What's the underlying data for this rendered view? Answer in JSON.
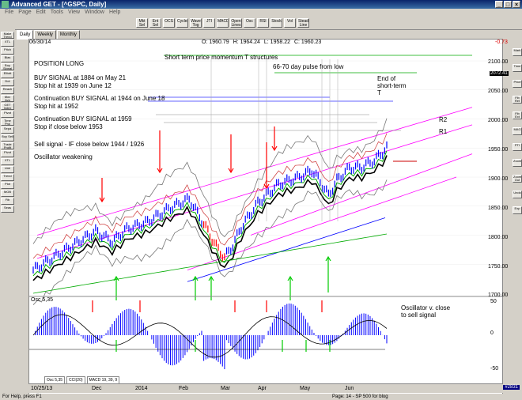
{
  "window": {
    "title": "Advanced GET - [^GSPC, Daily]"
  },
  "menu": [
    "File",
    "Page",
    "Edit",
    "Tools",
    "View",
    "Window",
    "Help"
  ],
  "toolbar": [
    "Mkt Sel",
    "Ent Sel",
    "OCS",
    "Cycles",
    "Wave Tog",
    "JTI",
    "MACD",
    "Open Lines",
    "Osc",
    "RSI",
    "Stock",
    "Vol",
    "Steady Line"
  ],
  "timeframe_tabs": [
    "Daily",
    "Weekly",
    "Monthly"
  ],
  "sidebar_buttons": [
    "Make Trend",
    "XTL",
    "Pitch",
    "Bias",
    "Buy Signal",
    "Elliott",
    "Dot",
    "Reach",
    "Mov Avg",
    "GET Index",
    "Pivot",
    "Time Proj",
    "Sepa",
    "Buy Sell",
    "Trade Profit",
    "Pivot",
    "XTL",
    "Line",
    "Trend",
    "Plot",
    "MOB",
    "Fib",
    "Seas"
  ],
  "right_buttons": [
    "Mark",
    "Time",
    "Price",
    "Fib Ret",
    "Fib Ext",
    "MAG",
    "PTI",
    "Zoom",
    "Zoom Out",
    "Undo",
    "Exp"
  ],
  "date_header": "06/30/14",
  "ohlc": {
    "open": "O: 1960.79",
    "high": "H: 1964.24",
    "low": "L: 1958.22",
    "close": "C: 1960.23",
    "change": "-0.73"
  },
  "annotations": {
    "position": "POSITION LONG",
    "buy1": "BUY SIGNAL at 1884 on May 21",
    "stop1": "Stop hit at 1939 on June 12",
    "cont1": "Continuation BUY SIGNAL at 1944 on June 18",
    "stop2": "Stop hit at 1952",
    "cont2": "Continuation BUY SIGNAL at 1959",
    "stop3": "Stop if close below 1953",
    "sell": "Sell signal - IF close below 1944 / 1926",
    "osc": "Oscillator weakening",
    "short_term": "Short term price momentum T structures",
    "pulse": "66-70 day pulse from low",
    "end_of": "End of",
    "short_term2": "short-term",
    "t": "T",
    "r2": "R2",
    "r1": "R1",
    "osc_close": "Oscillator v. close",
    "to_sell": "to sell signal"
  },
  "price_axis": [
    "2100.00",
    "2050.00",
    "2000.00",
    "1950.00",
    "1900.00",
    "1850.00",
    "1800.00",
    "1750.00",
    "1700.00"
  ],
  "price_box": "2072.41",
  "osc_axis": [
    "50",
    "0",
    "-50"
  ],
  "osc_label": "Osc 5,35",
  "osc_tabs": [
    "Osc 5,35",
    "CCI(20)",
    "MACD 19, 39, 9"
  ],
  "date_axis": [
    "10/25/13",
    "Dec",
    "2014",
    "Feb",
    "Mar",
    "Apr",
    "May",
    "Jun"
  ],
  "status": {
    "left": "For Help, press F1",
    "right": "Page: 14 - SP 500 for blog",
    "ticket": "#2831"
  },
  "colors": {
    "titlebar": "#0a246a",
    "bullish_bar": "#0000ff",
    "bearish_bar": "#ff0000",
    "ma_black": "#000000",
    "ma_green": "#00aa00",
    "band": "#555555",
    "channel": "#ff00ff",
    "target": "#3333ff"
  }
}
